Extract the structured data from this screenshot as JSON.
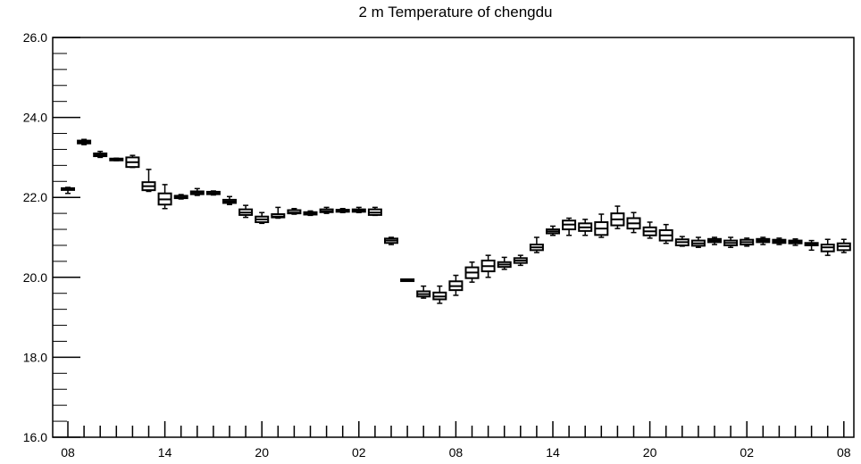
{
  "chart_data": {
    "type": "box",
    "title": "2 m Temperature of chengdu",
    "xlabel": "",
    "ylabel": "",
    "ylim": [
      16.0,
      26.0
    ],
    "y_ticks": [
      "16.0",
      "18.0",
      "20.0",
      "22.0",
      "24.0",
      "26.0"
    ],
    "x_tick_labels": [
      "08",
      "14",
      "20",
      "02",
      "08",
      "14",
      "20",
      "02",
      "08"
    ],
    "x_tick_hours": [
      0,
      6,
      12,
      18,
      24,
      30,
      36,
      42,
      48
    ],
    "grid": false,
    "series": [
      {
        "hours": [
          0,
          1,
          2,
          3,
          4,
          5,
          6,
          7,
          8,
          9,
          10,
          11,
          12,
          13,
          14,
          15,
          16,
          17,
          18,
          19,
          20,
          21,
          22,
          23,
          24,
          25,
          26,
          27,
          28,
          29,
          30,
          31,
          32,
          33,
          34,
          35,
          36,
          37,
          38,
          39,
          40,
          41,
          42,
          43,
          44,
          45,
          46,
          47,
          48
        ],
        "median": [
          22.22,
          23.38,
          23.06,
          22.95,
          22.88,
          22.28,
          21.95,
          22.0,
          22.12,
          22.1,
          21.9,
          21.62,
          21.45,
          21.52,
          21.62,
          21.6,
          21.65,
          21.66,
          21.66,
          21.62,
          20.92,
          19.93,
          19.58,
          19.52,
          19.78,
          20.12,
          20.28,
          20.32,
          20.42,
          20.75,
          21.15,
          21.32,
          21.25,
          21.22,
          21.45,
          21.35,
          21.15,
          21.05,
          20.88,
          20.85,
          20.92,
          20.86,
          20.88,
          20.92,
          20.9,
          20.88,
          20.82,
          20.75,
          20.78
        ],
        "q1": [
          22.2,
          23.35,
          23.03,
          22.93,
          22.76,
          22.18,
          21.82,
          21.98,
          22.08,
          22.08,
          21.86,
          21.56,
          21.38,
          21.5,
          21.6,
          21.57,
          21.63,
          21.64,
          21.64,
          21.56,
          20.86,
          19.92,
          19.52,
          19.45,
          19.68,
          19.98,
          20.15,
          20.26,
          20.36,
          20.68,
          21.1,
          21.2,
          21.16,
          21.06,
          21.3,
          21.22,
          21.05,
          20.92,
          20.8,
          20.79,
          20.88,
          20.8,
          20.82,
          20.88,
          20.86,
          20.85,
          20.8,
          20.65,
          20.68
        ],
        "q3": [
          22.23,
          23.42,
          23.1,
          22.97,
          23.0,
          22.38,
          22.1,
          22.04,
          22.15,
          22.14,
          21.94,
          21.7,
          21.52,
          21.58,
          21.68,
          21.63,
          21.7,
          21.69,
          21.7,
          21.7,
          20.97,
          19.95,
          19.65,
          19.62,
          19.9,
          20.25,
          20.42,
          20.38,
          20.48,
          20.82,
          21.2,
          21.42,
          21.35,
          21.38,
          21.6,
          21.48,
          21.25,
          21.18,
          20.95,
          20.92,
          20.96,
          20.92,
          20.94,
          20.96,
          20.94,
          20.92,
          20.86,
          20.82,
          20.85
        ],
        "min": [
          22.1,
          23.32,
          23.0,
          22.92,
          22.75,
          22.15,
          21.72,
          21.96,
          22.05,
          22.06,
          21.82,
          21.5,
          21.35,
          21.48,
          21.58,
          21.55,
          21.6,
          21.62,
          21.62,
          21.55,
          20.82,
          19.91,
          19.48,
          19.35,
          19.55,
          19.88,
          20.0,
          20.2,
          20.3,
          20.62,
          21.05,
          21.05,
          21.05,
          21.0,
          21.22,
          21.12,
          20.98,
          20.85,
          20.78,
          20.75,
          20.82,
          20.75,
          20.78,
          20.82,
          20.82,
          20.8,
          20.68,
          20.55,
          20.62
        ],
        "max": [
          22.25,
          23.45,
          23.15,
          22.98,
          23.05,
          22.7,
          22.32,
          22.07,
          22.22,
          22.16,
          22.02,
          21.8,
          21.62,
          21.75,
          21.72,
          21.66,
          21.75,
          21.72,
          21.75,
          21.75,
          21.0,
          19.95,
          19.78,
          19.78,
          20.05,
          20.38,
          20.55,
          20.5,
          20.55,
          21.0,
          21.28,
          21.48,
          21.45,
          21.58,
          21.78,
          21.62,
          21.38,
          21.32,
          21.02,
          21.0,
          21.0,
          21.0,
          20.98,
          21.0,
          20.98,
          20.96,
          20.92,
          20.95,
          20.95
        ]
      }
    ]
  }
}
